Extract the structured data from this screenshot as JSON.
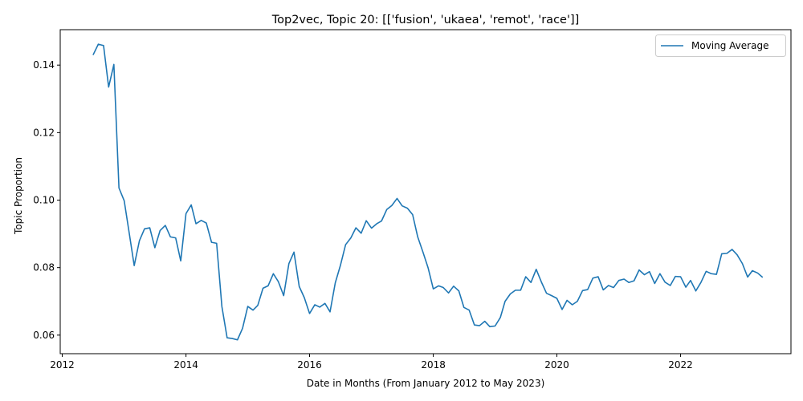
{
  "chart_data": {
    "type": "line",
    "title": "Top2vec, Topic 20: [['fusion', 'ukaea', 'remot', 'race']]",
    "xlabel": "Date in Months (From January 2012 to May 2023)",
    "ylabel": "Topic Proportion",
    "xlim": [
      "2011-12-20",
      "2023-10-15"
    ],
    "ylim": [
      0.0545,
      0.1505
    ],
    "x_ticks": [
      "2012",
      "2014",
      "2016",
      "2018",
      "2020",
      "2022"
    ],
    "y_ticks": [
      "0.06",
      "0.08",
      "0.10",
      "0.12",
      "0.14"
    ],
    "legend_position": "top-right",
    "grid": false,
    "series": [
      {
        "name": "Moving Average",
        "color": "#1f77b4",
        "points": [
          [
            "2012-07",
            0.143
          ],
          [
            "2012-08",
            0.1462
          ],
          [
            "2012-09",
            0.1458
          ],
          [
            "2012-10",
            0.1335
          ],
          [
            "2012-11",
            0.1402
          ],
          [
            "2012-12",
            0.1036
          ],
          [
            "2013-01",
            0.0998
          ],
          [
            "2013-02",
            0.0898
          ],
          [
            "2013-03",
            0.0806
          ],
          [
            "2013-04",
            0.088
          ],
          [
            "2013-05",
            0.0915
          ],
          [
            "2013-06",
            0.0918
          ],
          [
            "2013-07",
            0.0859
          ],
          [
            "2013-08",
            0.091
          ],
          [
            "2013-09",
            0.0925
          ],
          [
            "2013-10",
            0.0891
          ],
          [
            "2013-11",
            0.0888
          ],
          [
            "2013-12",
            0.082
          ],
          [
            "2014-01",
            0.096
          ],
          [
            "2014-02",
            0.0986
          ],
          [
            "2014-03",
            0.093
          ],
          [
            "2014-04",
            0.094
          ],
          [
            "2014-05",
            0.0932
          ],
          [
            "2014-06",
            0.0875
          ],
          [
            "2014-07",
            0.0872
          ],
          [
            "2014-08",
            0.0685
          ],
          [
            "2014-09",
            0.0592
          ],
          [
            "2014-10",
            0.059
          ],
          [
            "2014-11",
            0.0586
          ],
          [
            "2014-12",
            0.062
          ],
          [
            "2015-01",
            0.0685
          ],
          [
            "2015-02",
            0.0674
          ],
          [
            "2015-03",
            0.0688
          ],
          [
            "2015-04",
            0.0739
          ],
          [
            "2015-05",
            0.0746
          ],
          [
            "2015-06",
            0.0782
          ],
          [
            "2015-07",
            0.0758
          ],
          [
            "2015-08",
            0.0717
          ],
          [
            "2015-09",
            0.0812
          ],
          [
            "2015-10",
            0.0846
          ],
          [
            "2015-11",
            0.0744
          ],
          [
            "2015-12",
            0.0711
          ],
          [
            "2016-01",
            0.0664
          ],
          [
            "2016-02",
            0.069
          ],
          [
            "2016-03",
            0.0683
          ],
          [
            "2016-04",
            0.0694
          ],
          [
            "2016-05",
            0.0669
          ],
          [
            "2016-06",
            0.0755
          ],
          [
            "2016-07",
            0.0806
          ],
          [
            "2016-08",
            0.0868
          ],
          [
            "2016-09",
            0.0888
          ],
          [
            "2016-10",
            0.0918
          ],
          [
            "2016-11",
            0.0902
          ],
          [
            "2016-12",
            0.0939
          ],
          [
            "2017-01",
            0.0917
          ],
          [
            "2017-02",
            0.093
          ],
          [
            "2017-03",
            0.0938
          ],
          [
            "2017-04",
            0.0972
          ],
          [
            "2017-05",
            0.0984
          ],
          [
            "2017-06",
            0.1005
          ],
          [
            "2017-07",
            0.0983
          ],
          [
            "2017-08",
            0.0976
          ],
          [
            "2017-09",
            0.0957
          ],
          [
            "2017-10",
            0.0891
          ],
          [
            "2017-11",
            0.0846
          ],
          [
            "2017-12",
            0.08
          ],
          [
            "2018-01",
            0.0737
          ],
          [
            "2018-02",
            0.0746
          ],
          [
            "2018-03",
            0.0741
          ],
          [
            "2018-04",
            0.0725
          ],
          [
            "2018-05",
            0.0745
          ],
          [
            "2018-06",
            0.0731
          ],
          [
            "2018-07",
            0.0682
          ],
          [
            "2018-08",
            0.0674
          ],
          [
            "2018-09",
            0.063
          ],
          [
            "2018-10",
            0.0628
          ],
          [
            "2018-11",
            0.0641
          ],
          [
            "2018-12",
            0.0625
          ],
          [
            "2019-01",
            0.0627
          ],
          [
            "2019-02",
            0.0652
          ],
          [
            "2019-03",
            0.07
          ],
          [
            "2019-04",
            0.0722
          ],
          [
            "2019-05",
            0.0733
          ],
          [
            "2019-06",
            0.0733
          ],
          [
            "2019-07",
            0.0773
          ],
          [
            "2019-08",
            0.0756
          ],
          [
            "2019-09",
            0.0795
          ],
          [
            "2019-10",
            0.0758
          ],
          [
            "2019-11",
            0.0724
          ],
          [
            "2019-12",
            0.0717
          ],
          [
            "2020-01",
            0.0709
          ],
          [
            "2020-02",
            0.0676
          ],
          [
            "2020-03",
            0.0703
          ],
          [
            "2020-04",
            0.069
          ],
          [
            "2020-05",
            0.07
          ],
          [
            "2020-06",
            0.0732
          ],
          [
            "2020-07",
            0.0735
          ],
          [
            "2020-08",
            0.0769
          ],
          [
            "2020-09",
            0.0773
          ],
          [
            "2020-10",
            0.0734
          ],
          [
            "2020-11",
            0.0747
          ],
          [
            "2020-12",
            0.0741
          ],
          [
            "2021-01",
            0.0762
          ],
          [
            "2021-02",
            0.0766
          ],
          [
            "2021-03",
            0.0756
          ],
          [
            "2021-04",
            0.0761
          ],
          [
            "2021-05",
            0.0793
          ],
          [
            "2021-06",
            0.0779
          ],
          [
            "2021-07",
            0.0788
          ],
          [
            "2021-08",
            0.0753
          ],
          [
            "2021-09",
            0.0782
          ],
          [
            "2021-10",
            0.0757
          ],
          [
            "2021-11",
            0.0747
          ],
          [
            "2021-12",
            0.0774
          ],
          [
            "2022-01",
            0.0773
          ],
          [
            "2022-02",
            0.0742
          ],
          [
            "2022-03",
            0.0762
          ],
          [
            "2022-04",
            0.0731
          ],
          [
            "2022-05",
            0.0756
          ],
          [
            "2022-06",
            0.0789
          ],
          [
            "2022-07",
            0.0782
          ],
          [
            "2022-08",
            0.078
          ],
          [
            "2022-09",
            0.0841
          ],
          [
            "2022-10",
            0.0842
          ],
          [
            "2022-11",
            0.0854
          ],
          [
            "2022-12",
            0.0838
          ],
          [
            "2023-01",
            0.0812
          ],
          [
            "2023-02",
            0.0772
          ],
          [
            "2023-03",
            0.0791
          ],
          [
            "2023-04",
            0.0784
          ],
          [
            "2023-05",
            0.0771
          ]
        ]
      }
    ]
  }
}
